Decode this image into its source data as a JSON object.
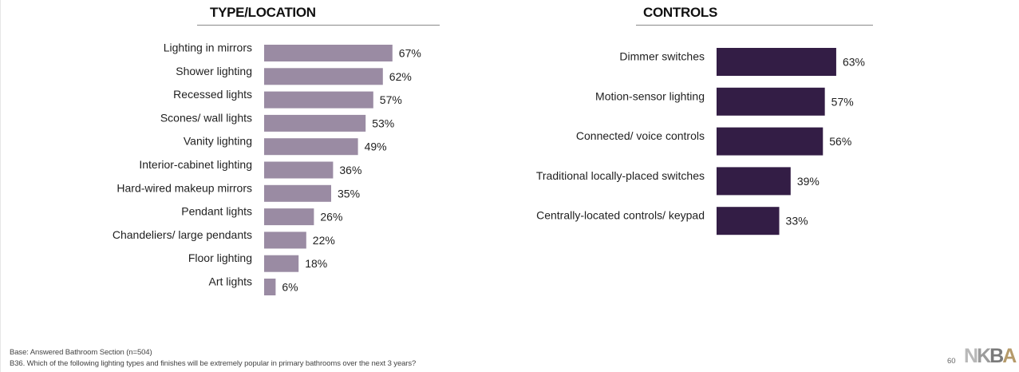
{
  "chart_data": [
    {
      "type": "bar",
      "orientation": "horizontal",
      "title": "TYPE/LOCATION",
      "categories": [
        "Lighting in mirrors",
        "Shower lighting",
        "Recessed lights",
        "Scones/ wall lights",
        "Vanity lighting",
        "Interior-cabinet lighting",
        "Hard-wired makeup mirrors",
        "Pendant lights",
        "Chandeliers/ large pendants",
        "Floor lighting",
        "Art lights"
      ],
      "values": [
        67,
        62,
        57,
        53,
        49,
        36,
        35,
        26,
        22,
        18,
        6
      ],
      "value_labels": [
        "67%",
        "62%",
        "57%",
        "53%",
        "49%",
        "36%",
        "35%",
        "26%",
        "22%",
        "18%",
        "6%"
      ],
      "color": "#9a8ba3",
      "grid": false,
      "legend": "none"
    },
    {
      "type": "bar",
      "orientation": "horizontal",
      "title": "CONTROLS",
      "categories": [
        "Dimmer switches",
        "Motion-sensor lighting",
        "Connected/ voice controls",
        "Traditional locally-placed switches",
        "Centrally-located controls/ keypad"
      ],
      "values": [
        63,
        57,
        56,
        39,
        33
      ],
      "value_labels": [
        "63%",
        "57%",
        "56%",
        "39%",
        "33%"
      ],
      "color": "#331d45",
      "grid": false,
      "legend": "none"
    }
  ],
  "footer": {
    "base_note": "Base:  Answered Bathroom Section (n=504)",
    "question_note": "B36.   Which of the following lighting types and finishes will be extremely popular in primary bathrooms over the next 3 years?",
    "page_number": "60",
    "logo": {
      "n": "N",
      "k": "K",
      "b": "B",
      "a": "A"
    }
  }
}
